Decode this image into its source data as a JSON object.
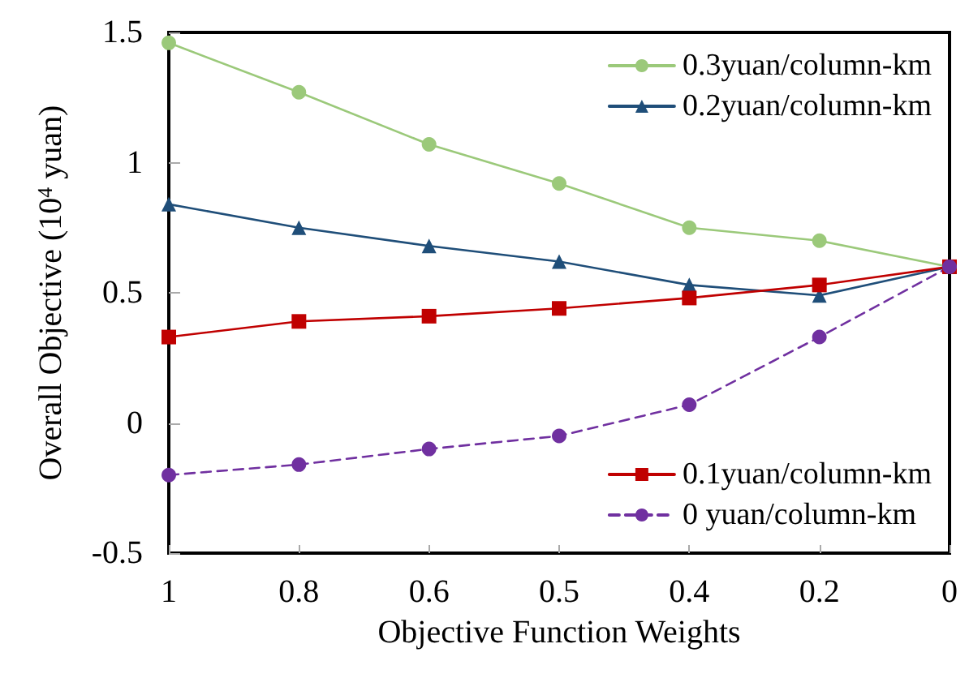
{
  "chart_data": {
    "type": "line",
    "xlabel": "Objective Function Weights",
    "ylabel": "Overall Objective (10$^{4}$ yuan)",
    "categories": [
      "1",
      "0.8",
      "0.6",
      "0.5",
      "0.4",
      "0.2",
      "0"
    ],
    "series": [
      {
        "name": "0.3yuan/column-km",
        "color": "#9bc97a",
        "marker": "circle",
        "line_style": "solid",
        "values": [
          1.46,
          1.27,
          1.07,
          0.92,
          0.75,
          0.7,
          0.6
        ]
      },
      {
        "name": "0.2yuan/column-km",
        "color": "#1f4e79",
        "marker": "triangle",
        "line_style": "solid",
        "values": [
          0.84,
          0.75,
          0.68,
          0.62,
          0.53,
          0.49,
          0.6
        ]
      },
      {
        "name": "0.1yuan/column-km",
        "color": "#c00000",
        "marker": "square",
        "line_style": "solid",
        "values": [
          0.33,
          0.39,
          0.41,
          0.44,
          0.48,
          0.53,
          0.6
        ]
      },
      {
        "name": "0 yuan/column-km",
        "color": "#7030a0",
        "marker": "circle",
        "line_style": "dashed",
        "values": [
          -0.2,
          -0.16,
          -0.1,
          -0.05,
          0.07,
          0.33,
          0.6
        ]
      }
    ],
    "ylim": [
      -0.5,
      1.5
    ],
    "yticks": [
      -0.5,
      0,
      0.5,
      1,
      1.5
    ],
    "grid": false,
    "legend": "right"
  }
}
